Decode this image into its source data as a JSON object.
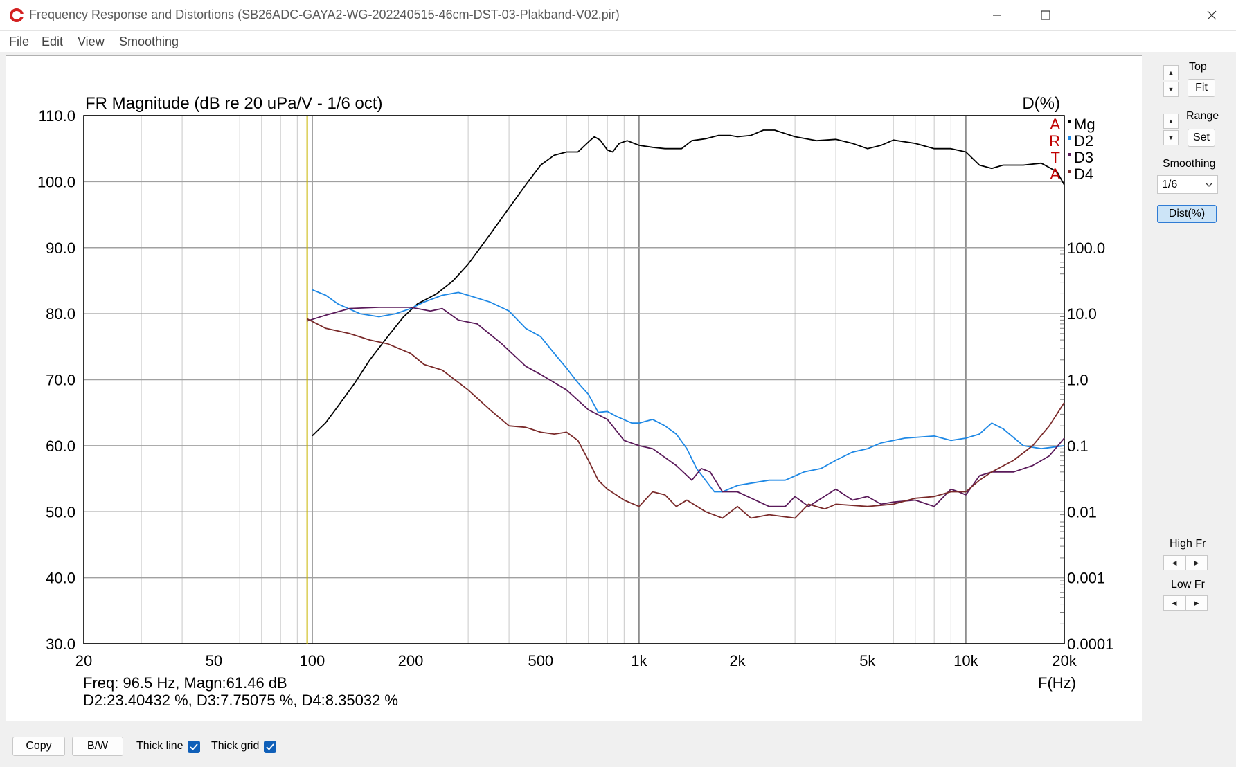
{
  "window": {
    "title": "Frequency Response and Distortions (SB26ADC-GAYA2-WG-202240515-46cm-DST-03-Plakband-V02.pir)",
    "icon": "app-logo-icon"
  },
  "menu": [
    "File",
    "Edit",
    "View",
    "Smoothing"
  ],
  "right_panel": {
    "top_label": "Top",
    "fit_label": "Fit",
    "range_label": "Range",
    "set_label": "Set",
    "smoothing_label": "Smoothing",
    "smoothing_value": "1/6",
    "dist_label": "Dist(%)",
    "high_fr_label": "High Fr",
    "low_fr_label": "Low Fr"
  },
  "bottom": {
    "copy_label": "Copy",
    "bw_label": "B/W",
    "thick_line_label": "Thick line",
    "thick_line_checked": true,
    "thick_grid_label": "Thick grid",
    "thick_grid_checked": true
  },
  "readout": {
    "line1": "Freq: 96.5 Hz, Magn:61.46 dB",
    "line2": "D2:23.40432 %, D3:7.75075 %, D4:8.35032 %"
  },
  "chart_data": {
    "type": "line",
    "title": "FR Magnitude (dB re 20 uPa/V - 1/6 oct)",
    "right_axis_title": "D(%)",
    "xlabel": "F(Hz)",
    "x_scale": "log",
    "xlim": [
      20,
      20000
    ],
    "x_ticks": [
      20,
      50,
      100,
      200,
      500,
      1000,
      2000,
      5000,
      10000,
      20000
    ],
    "x_tick_labels": [
      "20",
      "50",
      "100",
      "200",
      "500",
      "1k",
      "2k",
      "5k",
      "10k",
      "20k"
    ],
    "ylim_left": [
      30,
      110
    ],
    "y_ticks_left": [
      110,
      100,
      90,
      80,
      70,
      60,
      50,
      40,
      30
    ],
    "y_tick_labels_left": [
      "110.0",
      "100.0",
      "90.0",
      "80.0",
      "70.0",
      "60.0",
      "50.0",
      "40.0",
      "30.0"
    ],
    "right_scale": "log",
    "ylim_right_percent": [
      0.0001,
      100
    ],
    "y_ticks_right": [
      100,
      10,
      1,
      0.1,
      0.01,
      0.001,
      0.0001
    ],
    "y_tick_labels_right": [
      "100.0",
      "10.0",
      "1.0",
      "0.1",
      "0.01",
      "0.001",
      "0.0001"
    ],
    "grid": true,
    "cursor_frequency": 96.5,
    "cursor_color": "#c8b400",
    "legend_position": "top-right",
    "legend_side_letters": [
      "A",
      "R",
      "T",
      "A"
    ],
    "legend_side_color": "#c00000",
    "series": [
      {
        "name": "Mg",
        "axis": "left",
        "color": "#000000",
        "points": [
          [
            100,
            61.5
          ],
          [
            110,
            63.5
          ],
          [
            120,
            66
          ],
          [
            135,
            69.5
          ],
          [
            150,
            73
          ],
          [
            170,
            76.5
          ],
          [
            190,
            79.5
          ],
          [
            210,
            81.5
          ],
          [
            240,
            83
          ],
          [
            270,
            85
          ],
          [
            300,
            87.5
          ],
          [
            350,
            92
          ],
          [
            400,
            96
          ],
          [
            450,
            99.5
          ],
          [
            500,
            102.5
          ],
          [
            550,
            104
          ],
          [
            600,
            104.5
          ],
          [
            650,
            104.5
          ],
          [
            700,
            106
          ],
          [
            730,
            106.8
          ],
          [
            760,
            106.3
          ],
          [
            800,
            104.8
          ],
          [
            830,
            104.5
          ],
          [
            870,
            105.8
          ],
          [
            920,
            106.2
          ],
          [
            1000,
            105.5
          ],
          [
            1100,
            105.2
          ],
          [
            1200,
            105
          ],
          [
            1350,
            105
          ],
          [
            1450,
            106.2
          ],
          [
            1600,
            106.5
          ],
          [
            1750,
            107
          ],
          [
            1900,
            107
          ],
          [
            2000,
            106.8
          ],
          [
            2200,
            107
          ],
          [
            2400,
            107.8
          ],
          [
            2600,
            107.8
          ],
          [
            3000,
            106.8
          ],
          [
            3500,
            106.2
          ],
          [
            4000,
            106.4
          ],
          [
            4500,
            105.8
          ],
          [
            5000,
            105
          ],
          [
            5500,
            105.5
          ],
          [
            6000,
            106.3
          ],
          [
            7000,
            105.8
          ],
          [
            8000,
            105
          ],
          [
            9000,
            105
          ],
          [
            10000,
            104.5
          ],
          [
            11000,
            102.5
          ],
          [
            12000,
            102
          ],
          [
            13000,
            102.5
          ],
          [
            15000,
            102.5
          ],
          [
            17000,
            102.8
          ],
          [
            19000,
            101.5
          ],
          [
            20000,
            99.5
          ]
        ]
      },
      {
        "name": "D2",
        "axis": "right",
        "color": "#1e88e5",
        "points": [
          [
            100,
            23
          ],
          [
            110,
            19
          ],
          [
            120,
            14
          ],
          [
            140,
            10
          ],
          [
            160,
            9
          ],
          [
            180,
            10
          ],
          [
            200,
            12
          ],
          [
            220,
            15
          ],
          [
            250,
            19
          ],
          [
            280,
            21
          ],
          [
            300,
            19
          ],
          [
            350,
            15
          ],
          [
            400,
            11
          ],
          [
            450,
            6
          ],
          [
            500,
            4.5
          ],
          [
            550,
            2.5
          ],
          [
            600,
            1.5
          ],
          [
            650,
            0.9
          ],
          [
            700,
            0.6
          ],
          [
            750,
            0.32
          ],
          [
            800,
            0.33
          ],
          [
            850,
            0.28
          ],
          [
            950,
            0.22
          ],
          [
            1000,
            0.22
          ],
          [
            1100,
            0.25
          ],
          [
            1200,
            0.2
          ],
          [
            1300,
            0.15
          ],
          [
            1400,
            0.09
          ],
          [
            1500,
            0.045
          ],
          [
            1700,
            0.02
          ],
          [
            1800,
            0.02
          ],
          [
            2000,
            0.025
          ],
          [
            2500,
            0.03
          ],
          [
            2800,
            0.03
          ],
          [
            3200,
            0.04
          ],
          [
            3600,
            0.045
          ],
          [
            4000,
            0.06
          ],
          [
            4500,
            0.08
          ],
          [
            5000,
            0.09
          ],
          [
            5500,
            0.11
          ],
          [
            6500,
            0.13
          ],
          [
            8000,
            0.14
          ],
          [
            9000,
            0.12
          ],
          [
            10000,
            0.13
          ],
          [
            11000,
            0.15
          ],
          [
            12000,
            0.22
          ],
          [
            13000,
            0.18
          ],
          [
            15000,
            0.1
          ],
          [
            17000,
            0.09
          ],
          [
            20000,
            0.1
          ]
        ]
      },
      {
        "name": "D3",
        "axis": "right",
        "color": "#5a1a5a",
        "points": [
          [
            96.5,
            7.75
          ],
          [
            110,
            9.5
          ],
          [
            130,
            12
          ],
          [
            160,
            12.5
          ],
          [
            200,
            12.5
          ],
          [
            230,
            11
          ],
          [
            250,
            12
          ],
          [
            280,
            8
          ],
          [
            320,
            7
          ],
          [
            380,
            3.5
          ],
          [
            450,
            1.6
          ],
          [
            500,
            1.2
          ],
          [
            600,
            0.7
          ],
          [
            700,
            0.35
          ],
          [
            800,
            0.25
          ],
          [
            900,
            0.12
          ],
          [
            1000,
            0.1
          ],
          [
            1100,
            0.09
          ],
          [
            1300,
            0.05
          ],
          [
            1450,
            0.03
          ],
          [
            1550,
            0.045
          ],
          [
            1650,
            0.04
          ],
          [
            1800,
            0.02
          ],
          [
            2000,
            0.02
          ],
          [
            2500,
            0.012
          ],
          [
            2800,
            0.012
          ],
          [
            3000,
            0.017
          ],
          [
            3300,
            0.012
          ],
          [
            4000,
            0.022
          ],
          [
            4500,
            0.015
          ],
          [
            5000,
            0.017
          ],
          [
            5500,
            0.013
          ],
          [
            6000,
            0.014
          ],
          [
            7000,
            0.015
          ],
          [
            8000,
            0.012
          ],
          [
            9000,
            0.022
          ],
          [
            9500,
            0.02
          ],
          [
            10000,
            0.018
          ],
          [
            11000,
            0.035
          ],
          [
            12000,
            0.04
          ],
          [
            14000,
            0.04
          ],
          [
            16000,
            0.05
          ],
          [
            18000,
            0.07
          ],
          [
            20000,
            0.13
          ]
        ]
      },
      {
        "name": "D4",
        "axis": "right",
        "color": "#7a2a2a",
        "points": [
          [
            96.5,
            8.35
          ],
          [
            110,
            6
          ],
          [
            130,
            5
          ],
          [
            150,
            4
          ],
          [
            170,
            3.5
          ],
          [
            200,
            2.5
          ],
          [
            220,
            1.7
          ],
          [
            250,
            1.4
          ],
          [
            300,
            0.7
          ],
          [
            350,
            0.35
          ],
          [
            400,
            0.2
          ],
          [
            450,
            0.19
          ],
          [
            500,
            0.16
          ],
          [
            550,
            0.15
          ],
          [
            600,
            0.16
          ],
          [
            650,
            0.12
          ],
          [
            700,
            0.06
          ],
          [
            750,
            0.03
          ],
          [
            800,
            0.022
          ],
          [
            900,
            0.015
          ],
          [
            1000,
            0.012
          ],
          [
            1100,
            0.02
          ],
          [
            1200,
            0.018
          ],
          [
            1300,
            0.012
          ],
          [
            1400,
            0.015
          ],
          [
            1600,
            0.01
          ],
          [
            1800,
            0.008
          ],
          [
            2000,
            0.012
          ],
          [
            2200,
            0.008
          ],
          [
            2500,
            0.009
          ],
          [
            3000,
            0.008
          ],
          [
            3300,
            0.013
          ],
          [
            3700,
            0.011
          ],
          [
            4000,
            0.013
          ],
          [
            5000,
            0.012
          ],
          [
            6000,
            0.013
          ],
          [
            7000,
            0.016
          ],
          [
            8000,
            0.017
          ],
          [
            9000,
            0.02
          ],
          [
            10000,
            0.02
          ],
          [
            11000,
            0.03
          ],
          [
            12000,
            0.04
          ],
          [
            14000,
            0.06
          ],
          [
            16000,
            0.1
          ],
          [
            18000,
            0.2
          ],
          [
            20000,
            0.45
          ]
        ]
      }
    ]
  }
}
